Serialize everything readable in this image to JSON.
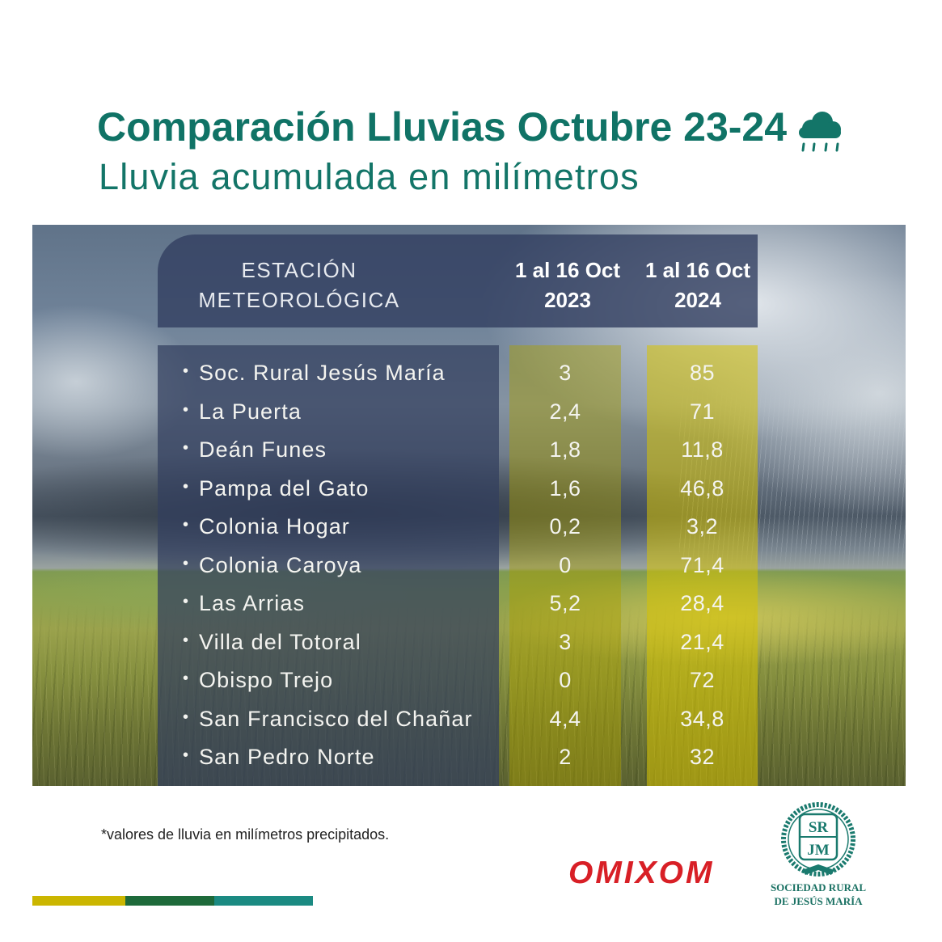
{
  "chart_data": {
    "type": "table",
    "title": "Comparación Lluvias Octubre 23-24",
    "subtitle": "Lluvia acumulada en milímetros",
    "columns": [
      {
        "label_lines": [
          "ESTACIÓN",
          "METEOROLÓGICA"
        ]
      },
      {
        "label_lines": [
          "1 al 16 Oct",
          "2023"
        ]
      },
      {
        "label_lines": [
          "1 al 16 Oct",
          "2024"
        ]
      }
    ],
    "rows": [
      {
        "station": "Soc. Rural Jesús María",
        "oct_2023": "3",
        "oct_2024": "85"
      },
      {
        "station": "La Puerta",
        "oct_2023": "2,4",
        "oct_2024": "71"
      },
      {
        "station": "Deán Funes",
        "oct_2023": "1,8",
        "oct_2024": "11,8"
      },
      {
        "station": "Pampa del Gato",
        "oct_2023": "1,6",
        "oct_2024": "46,8"
      },
      {
        "station": "Colonia Hogar",
        "oct_2023": "0,2",
        "oct_2024": "3,2"
      },
      {
        "station": "Colonia Caroya",
        "oct_2023": "0",
        "oct_2024": "71,4"
      },
      {
        "station": "Las Arrias",
        "oct_2023": "5,2",
        "oct_2024": "28,4"
      },
      {
        "station": "Villa del Totoral",
        "oct_2023": "3",
        "oct_2024": "21,4"
      },
      {
        "station": "Obispo Trejo",
        "oct_2023": "0",
        "oct_2024": "72"
      },
      {
        "station": "San Francisco del Chañar",
        "oct_2023": "4,4",
        "oct_2024": "34,8"
      },
      {
        "station": "San Pedro Norte",
        "oct_2023": "2",
        "oct_2024": "32"
      }
    ]
  },
  "footer": {
    "note": "*valores de lluvia en milímetros precipitados.",
    "sponsor_logo": "OMIXOM",
    "org_logo_letters": [
      "SR",
      "JM"
    ],
    "org_name_line1": "SOCIEDAD RURAL",
    "org_name_line2": "DE JESÚS MARÍA"
  },
  "icons": {
    "title_icon": "rain-cloud-icon",
    "org_emblem": "srjm-emblem"
  },
  "colors": {
    "title": "#107366",
    "sponsor_red": "#d81f26",
    "column_2023": "#aaa000",
    "column_2024": "#d7c300",
    "bar_yellow": "#cbb600",
    "bar_green": "#1e6a3a",
    "bar_teal": "#1b8a82"
  }
}
